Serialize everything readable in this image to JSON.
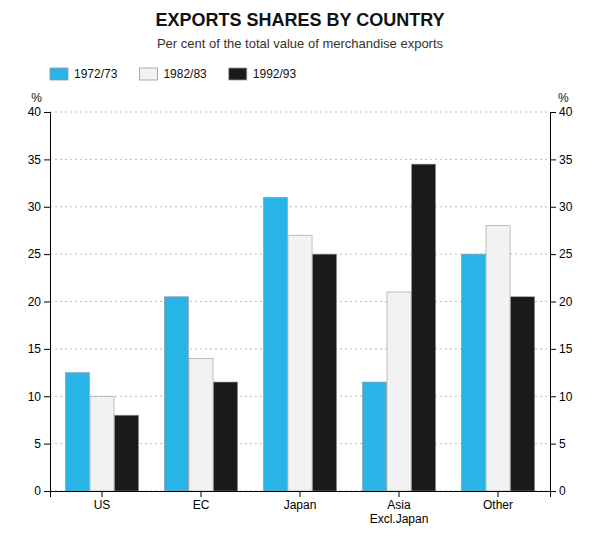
{
  "chart_data": {
    "type": "bar",
    "title": "EXPORTS SHARES BY COUNTRY",
    "subtitle": "Per cent of the total value of merchandise exports",
    "categories": [
      "US",
      "EC",
      "Japan",
      "Asia\nExcl.Japan",
      "Other"
    ],
    "series": [
      {
        "name": "1972/73",
        "color": "#29b4e8",
        "values": [
          12.5,
          20.5,
          31.0,
          11.5,
          25.0
        ]
      },
      {
        "name": "1982/83",
        "color": "#f2f2f2",
        "values": [
          10.0,
          14.0,
          27.0,
          21.0,
          28.0
        ]
      },
      {
        "name": "1992/93",
        "color": "#1a1a1a",
        "values": [
          8.0,
          11.5,
          25.0,
          34.5,
          20.5
        ]
      }
    ],
    "y_label": "%",
    "y2_label": "%",
    "ylim": [
      0,
      40
    ],
    "yticks": [
      0,
      5,
      10,
      15,
      20,
      25,
      30,
      35,
      40
    ],
    "y2lim": [
      0,
      40
    ],
    "y2ticks": [
      0,
      5,
      10,
      15,
      20,
      25,
      30,
      35,
      40
    ],
    "grid": true,
    "legend": "top"
  }
}
